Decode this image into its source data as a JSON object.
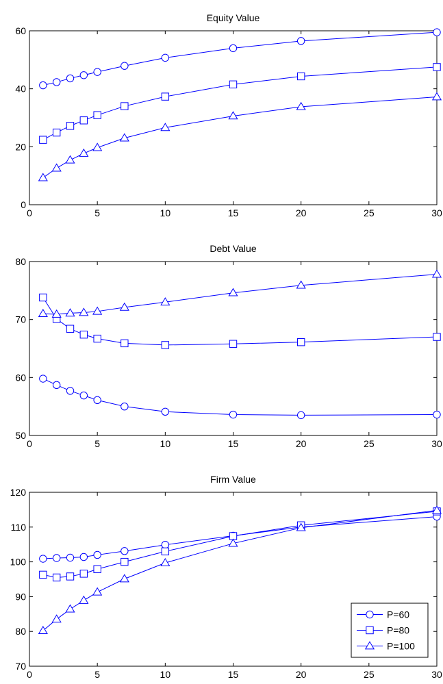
{
  "chart_data": [
    {
      "type": "line",
      "title": "Equity Value",
      "xlabel": "",
      "ylabel": "",
      "xlim": [
        0,
        30
      ],
      "ylim": [
        0,
        60
      ],
      "xticks": [
        0,
        5,
        10,
        15,
        20,
        25,
        30
      ],
      "yticks": [
        0,
        20,
        40,
        60
      ],
      "grid": false,
      "x": [
        1,
        2,
        3,
        4,
        5,
        7,
        10,
        15,
        20,
        30
      ],
      "series": [
        {
          "marker": "circle",
          "values": [
            41.2,
            42.3,
            43.6,
            44.7,
            45.8,
            47.9,
            50.7,
            54.0,
            56.5,
            59.5
          ]
        },
        {
          "marker": "square",
          "values": [
            22.4,
            24.9,
            27.2,
            29.1,
            30.9,
            34.0,
            37.3,
            41.5,
            44.3,
            47.5
          ]
        },
        {
          "marker": "triangle",
          "values": [
            9.3,
            12.6,
            15.4,
            17.7,
            19.7,
            23.0,
            26.6,
            30.6,
            33.8,
            37.2
          ]
        }
      ]
    },
    {
      "type": "line",
      "title": "Debt Value",
      "xlabel": "",
      "ylabel": "",
      "xlim": [
        0,
        30
      ],
      "ylim": [
        50,
        80
      ],
      "xticks": [
        0,
        5,
        10,
        15,
        20,
        25,
        30
      ],
      "yticks": [
        50,
        60,
        70,
        80
      ],
      "grid": false,
      "x": [
        1,
        2,
        3,
        4,
        5,
        7,
        10,
        15,
        20,
        30
      ],
      "series": [
        {
          "marker": "circle",
          "values": [
            59.8,
            58.7,
            57.7,
            56.9,
            56.1,
            55.0,
            54.1,
            53.6,
            53.5,
            53.6
          ]
        },
        {
          "marker": "square",
          "values": [
            73.8,
            70.1,
            68.4,
            67.4,
            66.7,
            65.9,
            65.6,
            65.8,
            66.1,
            67.0
          ]
        },
        {
          "marker": "triangle",
          "values": [
            71.0,
            70.9,
            71.1,
            71.2,
            71.4,
            72.1,
            73.0,
            74.6,
            75.9,
            77.8
          ]
        }
      ]
    },
    {
      "type": "line",
      "title": "Firm Value",
      "xlabel": "",
      "ylabel": "",
      "xlim": [
        0,
        30
      ],
      "ylim": [
        70,
        120
      ],
      "xticks": [
        0,
        5,
        10,
        15,
        20,
        25,
        30
      ],
      "yticks": [
        70,
        80,
        90,
        100,
        110,
        120
      ],
      "grid": false,
      "legend_position": "bottom-right",
      "x": [
        1,
        2,
        3,
        4,
        5,
        7,
        10,
        15,
        20,
        30
      ],
      "series": [
        {
          "name": "P=60",
          "marker": "circle",
          "values": [
            100.9,
            101.1,
            101.2,
            101.4,
            102.0,
            103.1,
            104.9,
            107.5,
            110.0,
            113.0
          ]
        },
        {
          "name": "P=80",
          "marker": "square",
          "values": [
            96.3,
            95.5,
            95.8,
            96.6,
            97.9,
            100.0,
            103.0,
            107.4,
            110.5,
            114.5
          ]
        },
        {
          "name": "P=100",
          "marker": "triangle",
          "values": [
            80.2,
            83.5,
            86.4,
            88.9,
            91.3,
            95.1,
            99.7,
            105.3,
            109.8,
            114.8
          ]
        }
      ]
    }
  ],
  "style": {
    "line_color": "#0000ff",
    "axis_color": "#000000",
    "background": "#ffffff"
  }
}
